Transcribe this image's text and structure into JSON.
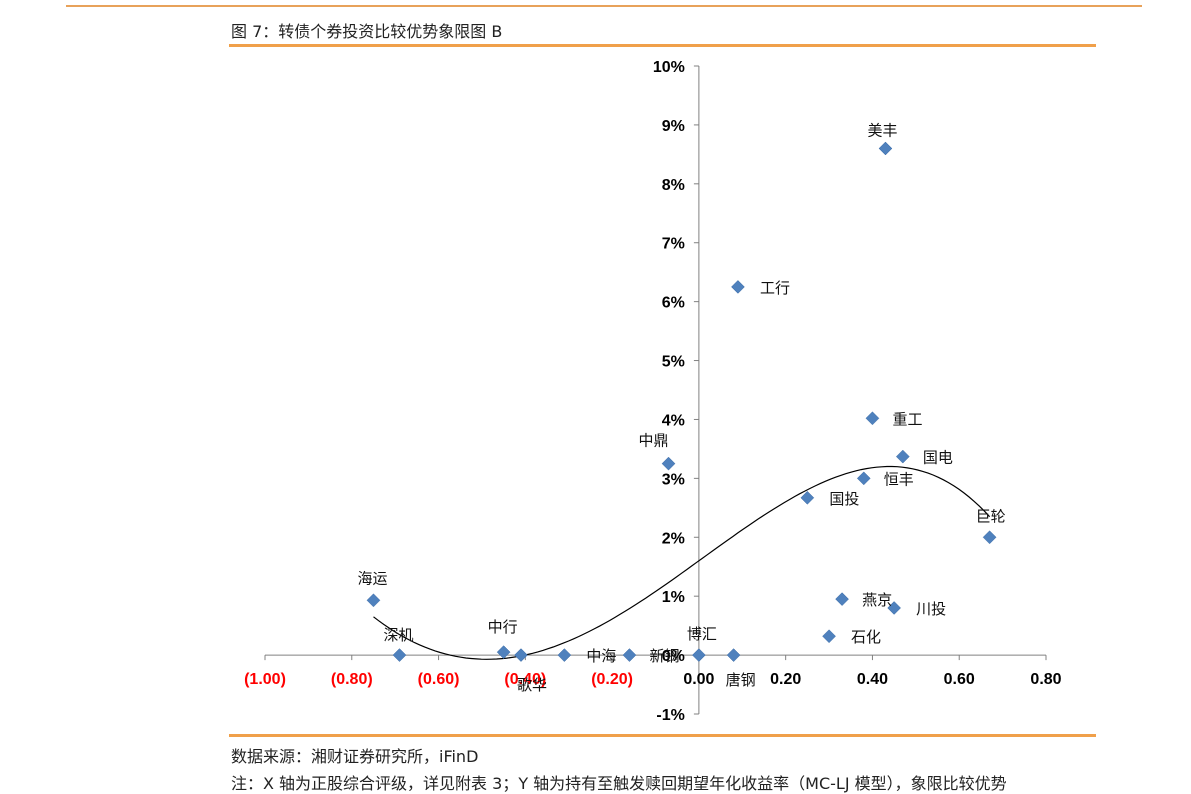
{
  "figure": {
    "title": "图 7：转债个券投资比较优势象限图 B",
    "source": "数据来源：湘财证券研究所，iFinD",
    "note": "注：X 轴为正股综合评级，详见附表 3；Y 轴为持有至触发赎回期望年化收益率（MC-LJ 模型），象限比较优势"
  },
  "colors": {
    "accent_rule": "#f0a04a",
    "marker": "#4f81bd",
    "negative_tick": "#ff0000",
    "positive_tick": "#000000",
    "axis": "#808080"
  },
  "chart_data": {
    "type": "scatter",
    "title": "",
    "xlabel": "",
    "ylabel": "",
    "xlim": [
      -1.0,
      0.8
    ],
    "ylim": [
      -0.01,
      0.1
    ],
    "x_ticks": [
      -1.0,
      -0.8,
      -0.6,
      -0.4,
      -0.2,
      0.0,
      0.2,
      0.4,
      0.6,
      0.8
    ],
    "x_tick_labels": [
      "(1.00)",
      "(0.80)",
      "(0.60)",
      "(0.40)",
      "(0.20)",
      "0.00",
      "0.20",
      "0.40",
      "0.60",
      "0.80"
    ],
    "y_ticks": [
      -0.01,
      0.0,
      0.01,
      0.02,
      0.03,
      0.04,
      0.05,
      0.06,
      0.07,
      0.08,
      0.09,
      0.1
    ],
    "y_tick_labels": [
      "-1%",
      "0%",
      "1%",
      "2%",
      "3%",
      "4%",
      "5%",
      "6%",
      "7%",
      "8%",
      "9%",
      "10%"
    ],
    "grid": false,
    "points": [
      {
        "name": "美丰",
        "x": 0.43,
        "y": 0.086
      },
      {
        "name": "工行",
        "x": 0.09,
        "y": 0.0625
      },
      {
        "name": "重工",
        "x": 0.4,
        "y": 0.0402
      },
      {
        "name": "国电",
        "x": 0.47,
        "y": 0.0337
      },
      {
        "name": "中鼎",
        "x": -0.07,
        "y": 0.0325
      },
      {
        "name": "恒丰",
        "x": 0.38,
        "y": 0.03
      },
      {
        "name": "国投",
        "x": 0.25,
        "y": 0.0267
      },
      {
        "name": "巨轮",
        "x": 0.67,
        "y": 0.02
      },
      {
        "name": "海运",
        "x": -0.75,
        "y": 0.0093
      },
      {
        "name": "燕京",
        "x": 0.33,
        "y": 0.0095
      },
      {
        "name": "川投",
        "x": 0.45,
        "y": 0.008
      },
      {
        "name": "石化",
        "x": 0.3,
        "y": 0.0032
      },
      {
        "name": "深机",
        "x": -0.69,
        "y": 0.0
      },
      {
        "name": "中行",
        "x": -0.45,
        "y": 0.0005
      },
      {
        "name": "歌华",
        "x": -0.41,
        "y": 0.0
      },
      {
        "name": "中海",
        "x": -0.31,
        "y": 0.0
      },
      {
        "name": "新钢",
        "x": -0.16,
        "y": 0.0
      },
      {
        "name": "博汇",
        "x": 0.0,
        "y": 0.0
      },
      {
        "name": "唐钢",
        "x": 0.08,
        "y": 0.0
      }
    ],
    "trendline": {
      "type": "polynomial",
      "order": 3,
      "x_range": [
        -0.75,
        0.67
      ],
      "fit_points": [
        {
          "x": -0.75,
          "y": 0.0065
        },
        {
          "x": -0.5,
          "y": -0.0007
        },
        {
          "x": 0.0,
          "y": 0.016
        },
        {
          "x": 0.43,
          "y": 0.032
        },
        {
          "x": 0.67,
          "y": 0.0235
        }
      ]
    }
  }
}
